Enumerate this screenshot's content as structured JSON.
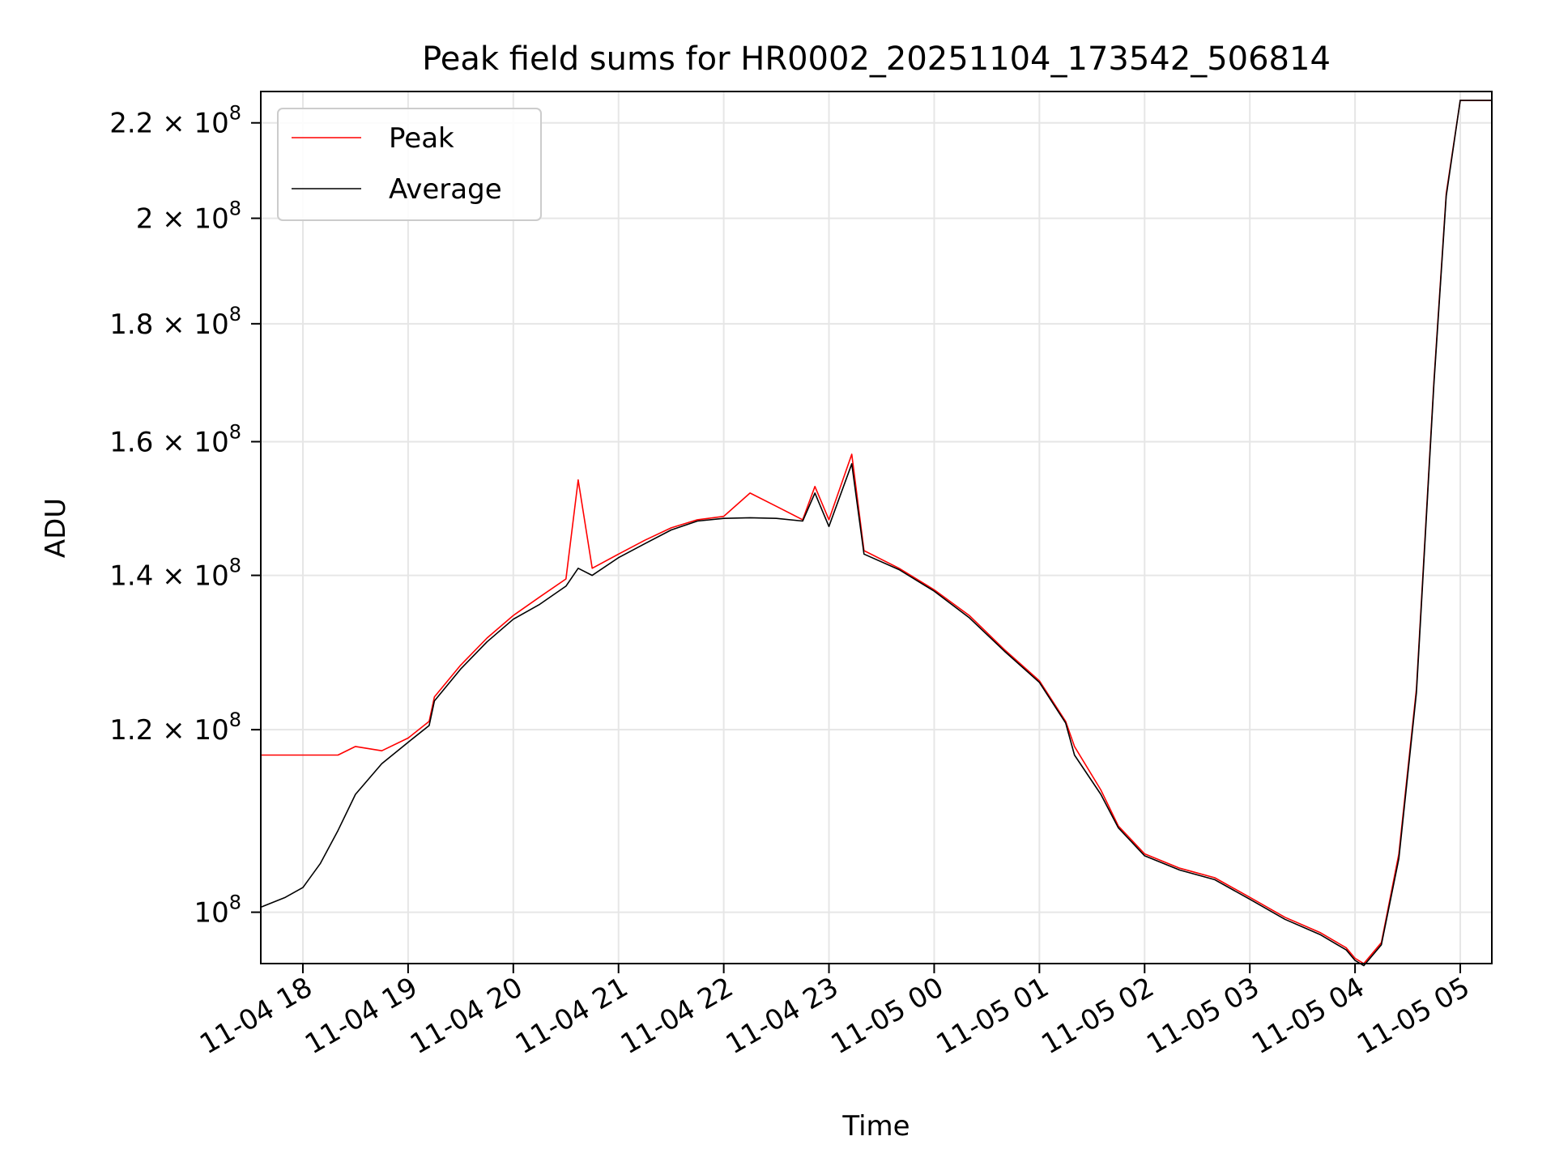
{
  "chart_data": {
    "type": "line",
    "title": "Peak field sums for HR0002_20251104_173542_506814",
    "xlabel": "Time",
    "ylabel": "ADU",
    "x_ticks": [
      "11-04 18",
      "11-04 19",
      "11-04 20",
      "11-04 21",
      "11-04 22",
      "11-04 23",
      "11-05 00",
      "11-05 01",
      "11-05 02",
      "11-05 03",
      "11-05 04",
      "11-05 05"
    ],
    "x_tick_dates": [
      "2025-11-04T18:00",
      "2025-11-04T19:00",
      "2025-11-04T20:00",
      "2025-11-04T21:00",
      "2025-11-04T22:00",
      "2025-11-04T23:00",
      "2025-11-05T00:00",
      "2025-11-05T01:00",
      "2025-11-05T02:00",
      "2025-11-05T03:00",
      "2025-11-05T04:00",
      "2025-11-05T05:00"
    ],
    "xlim": [
      "2025-11-04T17:36",
      "2025-11-05T05:18"
    ],
    "yscale": "log",
    "ylim": [
      95000000,
      227000000
    ],
    "y_ticks": [
      {
        "value": 100000000,
        "mantissa": "",
        "exp": "8"
      },
      {
        "value": 120000000,
        "mantissa": "1.2",
        "exp": "8"
      },
      {
        "value": 140000000,
        "mantissa": "1.4",
        "exp": "8"
      },
      {
        "value": 160000000,
        "mantissa": "1.6",
        "exp": "8"
      },
      {
        "value": 180000000,
        "mantissa": "1.8",
        "exp": "8"
      },
      {
        "value": 200000000,
        "mantissa": "2",
        "exp": "8"
      },
      {
        "value": 220000000,
        "mantissa": "2.2",
        "exp": "8"
      }
    ],
    "grid": true,
    "legend_position": "top-left",
    "series": [
      {
        "name": "Peak",
        "color": "#ff0000",
        "x": [
          "2025-11-04T17:36",
          "2025-11-04T17:50",
          "2025-11-04T18:00",
          "2025-11-04T18:10",
          "2025-11-04T18:20",
          "2025-11-04T18:30",
          "2025-11-04T18:45",
          "2025-11-04T19:00",
          "2025-11-04T19:12",
          "2025-11-04T19:15",
          "2025-11-04T19:30",
          "2025-11-04T19:45",
          "2025-11-04T20:00",
          "2025-11-04T20:15",
          "2025-11-04T20:30",
          "2025-11-04T20:37",
          "2025-11-04T20:45",
          "2025-11-04T21:00",
          "2025-11-04T21:15",
          "2025-11-04T21:30",
          "2025-11-04T21:45",
          "2025-11-04T22:00",
          "2025-11-04T22:15",
          "2025-11-04T22:30",
          "2025-11-04T22:45",
          "2025-11-04T22:52",
          "2025-11-04T23:00",
          "2025-11-04T23:13",
          "2025-11-04T23:20",
          "2025-11-04T23:40",
          "2025-11-05T00:00",
          "2025-11-05T00:20",
          "2025-11-05T00:40",
          "2025-11-05T01:00",
          "2025-11-05T01:15",
          "2025-11-05T01:20",
          "2025-11-05T01:35",
          "2025-11-05T01:45",
          "2025-11-05T02:00",
          "2025-11-05T02:20",
          "2025-11-05T02:40",
          "2025-11-05T03:00",
          "2025-11-05T03:20",
          "2025-11-05T03:40",
          "2025-11-05T03:55",
          "2025-11-05T04:00",
          "2025-11-05T04:05",
          "2025-11-05T04:15",
          "2025-11-05T04:25",
          "2025-11-05T04:35",
          "2025-11-05T04:45",
          "2025-11-05T04:52",
          "2025-11-05T05:00",
          "2025-11-05T05:18"
        ],
        "values": [
          117000000,
          117000000,
          117000000,
          117000000,
          117000000,
          118000000,
          117500000,
          119000000,
          121000000,
          124000000,
          128000000,
          131500000,
          134500000,
          137000000,
          139500000,
          154000000,
          141000000,
          143000000,
          145000000,
          146800000,
          148000000,
          148500000,
          152000000,
          150000000,
          148000000,
          153000000,
          148000000,
          158000000,
          143500000,
          141000000,
          138000000,
          134500000,
          130000000,
          126000000,
          121000000,
          118000000,
          113000000,
          109000000,
          106000000,
          104500000,
          103500000,
          101500000,
          99500000,
          98000000,
          96500000,
          95500000,
          95000000,
          97000000,
          106000000,
          125000000,
          170000000,
          205000000,
          225000000,
          225000000
        ]
      },
      {
        "name": "Average",
        "color": "#000000",
        "x": [
          "2025-11-04T17:36",
          "2025-11-04T17:50",
          "2025-11-04T18:00",
          "2025-11-04T18:10",
          "2025-11-04T18:20",
          "2025-11-04T18:30",
          "2025-11-04T18:45",
          "2025-11-04T19:00",
          "2025-11-04T19:12",
          "2025-11-04T19:15",
          "2025-11-04T19:30",
          "2025-11-04T19:45",
          "2025-11-04T20:00",
          "2025-11-04T20:15",
          "2025-11-04T20:30",
          "2025-11-04T20:37",
          "2025-11-04T20:45",
          "2025-11-04T21:00",
          "2025-11-04T21:15",
          "2025-11-04T21:30",
          "2025-11-04T21:45",
          "2025-11-04T22:00",
          "2025-11-04T22:15",
          "2025-11-04T22:30",
          "2025-11-04T22:45",
          "2025-11-04T22:52",
          "2025-11-04T23:00",
          "2025-11-04T23:13",
          "2025-11-04T23:20",
          "2025-11-04T23:40",
          "2025-11-05T00:00",
          "2025-11-05T00:20",
          "2025-11-05T00:40",
          "2025-11-05T01:00",
          "2025-11-05T01:15",
          "2025-11-05T01:20",
          "2025-11-05T01:35",
          "2025-11-05T01:45",
          "2025-11-05T02:00",
          "2025-11-05T02:20",
          "2025-11-05T02:40",
          "2025-11-05T03:00",
          "2025-11-05T03:20",
          "2025-11-05T03:40",
          "2025-11-05T03:55",
          "2025-11-05T04:00",
          "2025-11-05T04:05",
          "2025-11-05T04:15",
          "2025-11-05T04:25",
          "2025-11-05T04:35",
          "2025-11-05T04:45",
          "2025-11-05T04:52",
          "2025-11-05T05:00",
          "2025-11-05T05:18"
        ],
        "values": [
          100500000,
          101500000,
          102500000,
          105000000,
          108500000,
          112500000,
          116000000,
          118500000,
          120500000,
          123500000,
          127500000,
          131000000,
          134000000,
          136000000,
          138500000,
          141000000,
          140000000,
          142500000,
          144500000,
          146500000,
          147800000,
          148200000,
          148300000,
          148200000,
          147800000,
          152000000,
          147000000,
          156500000,
          143000000,
          140800000,
          137800000,
          134200000,
          129800000,
          125800000,
          120800000,
          117000000,
          112500000,
          108800000,
          105800000,
          104300000,
          103300000,
          101300000,
          99300000,
          97800000,
          96300000,
          95300000,
          94800000,
          96800000,
          105500000,
          124500000,
          169500000,
          204500000,
          225000000,
          225000000
        ]
      }
    ]
  }
}
